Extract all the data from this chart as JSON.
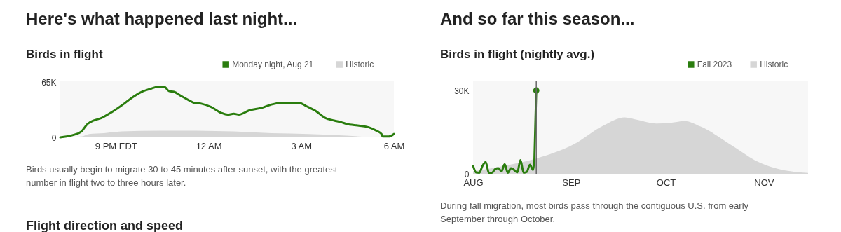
{
  "chart_data": [
    {
      "type": "line",
      "title": "Here's what happened last night...",
      "subtitle": "Birds in flight",
      "xlim": [
        "2023-08-21T19:12",
        "2023-08-22T06:00"
      ],
      "xticks": [
        {
          "value": "2023-08-21T21:00",
          "label": "9 PM EDT"
        },
        {
          "value": "2023-08-22T00:00",
          "label": "12 AM"
        },
        {
          "value": "2023-08-22T03:00",
          "label": "3 AM"
        },
        {
          "value": "2023-08-22T06:00",
          "label": "6 AM"
        }
      ],
      "ylim": [
        0,
        66500
      ],
      "yticks": [
        0,
        {
          "value": 65000,
          "label": "65K"
        }
      ],
      "legend": "top right",
      "series": [
        {
          "name": "Monday night, Aug 21",
          "color": "#2a7d0e",
          "x": [
            "2023-08-21T19:12",
            "2023-08-21T19:24",
            "2023-08-21T19:38",
            "2023-08-21T19:53",
            "2023-08-21T20:05",
            "2023-08-21T20:17",
            "2023-08-21T20:32",
            "2023-08-21T20:52",
            "2023-08-21T21:16",
            "2023-08-21T21:31",
            "2023-08-21T21:50",
            "2023-08-21T22:09",
            "2023-08-21T22:22",
            "2023-08-21T22:34",
            "2023-08-21T22:43",
            "2023-08-21T22:53",
            "2023-08-21T23:07",
            "2023-08-21T23:22",
            "2023-08-21T23:32",
            "2023-08-21T23:46",
            "2023-08-22T00:05",
            "2023-08-22T00:25",
            "2023-08-22T00:37",
            "2023-08-22T00:49",
            "2023-08-22T00:59",
            "2023-08-22T01:19",
            "2023-08-22T01:43",
            "2023-08-22T02:02",
            "2023-08-22T02:22",
            "2023-08-22T02:41",
            "2023-08-22T02:56",
            "2023-08-22T03:10",
            "2023-08-22T03:29",
            "2023-08-22T03:47",
            "2023-08-22T04:04",
            "2023-08-22T04:18",
            "2023-08-22T04:28",
            "2023-08-22T04:52",
            "2023-08-22T05:11",
            "2023-08-22T05:26",
            "2023-08-22T05:36",
            "2023-08-22T05:38",
            "2023-08-22T05:50",
            "2023-08-22T06:00"
          ],
          "values": [
            0,
            1000,
            3000,
            7000,
            16000,
            20000,
            23000,
            30000,
            40000,
            47000,
            54000,
            58000,
            60000,
            60000,
            55000,
            54000,
            49000,
            44000,
            41000,
            40000,
            36000,
            29000,
            27000,
            28000,
            27000,
            32000,
            35000,
            39000,
            41000,
            41000,
            41000,
            37000,
            31000,
            23000,
            20000,
            18000,
            16000,
            14000,
            12000,
            8000,
            4000,
            1000,
            1000,
            4000
          ]
        },
        {
          "name": "Historic",
          "type": "area",
          "color": "#d6d6d6",
          "x": [
            "2023-08-21T19:12",
            "2023-08-21T19:53",
            "2023-08-21T20:08",
            "2023-08-21T20:37",
            "2023-08-21T21:11",
            "2023-08-21T22:24",
            "2023-08-21T23:37",
            "2023-08-22T00:49",
            "2023-08-22T02:02",
            "2023-08-22T03:15",
            "2023-08-22T04:28",
            "2023-08-22T05:31",
            "2023-08-22T06:00"
          ],
          "values": [
            0,
            1000,
            4000,
            5000,
            7000,
            8000,
            8000,
            7000,
            5000,
            4000,
            2000,
            0,
            0
          ]
        }
      ],
      "annotations": [
        "Birds usually begin to migrate 30 to 45 minutes after sunset, with the greatest number in flight two to three hours later.",
        "Flight direction and speed"
      ]
    },
    {
      "type": "line",
      "title": "And so far this season...",
      "subtitle": "Birds in flight (nightly avg.)",
      "xlim": [
        "2023-08-01",
        "2023-11-15"
      ],
      "xticks": [
        {
          "value": "2023-08-01",
          "label": "AUG"
        },
        {
          "value": "2023-09-01",
          "label": "SEP"
        },
        {
          "value": "2023-10-01",
          "label": "OCT"
        },
        {
          "value": "2023-11-01",
          "label": "NOV"
        }
      ],
      "ylim": [
        0,
        33300
      ],
      "yticks": [
        0,
        {
          "value": 30000,
          "label": "30K"
        }
      ],
      "legend": "top right",
      "series": [
        {
          "name": "Fall 2023",
          "color": "#2a7d0e",
          "x": [
            "2023-08-01",
            "2023-08-02",
            "2023-08-03",
            "2023-08-04",
            "2023-08-05",
            "2023-08-06",
            "2023-08-07",
            "2023-08-08",
            "2023-08-09",
            "2023-08-10",
            "2023-08-11",
            "2023-08-12",
            "2023-08-13",
            "2023-08-14",
            "2023-08-15",
            "2023-08-16",
            "2023-08-17",
            "2023-08-18",
            "2023-08-19",
            "2023-08-20",
            "2023-08-21"
          ],
          "values": [
            2900,
            500,
            400,
            2900,
            4200,
            400,
            400,
            1700,
            2000,
            900,
            3500,
            400,
            2000,
            1400,
            500,
            4900,
            400,
            700,
            3300,
            1400,
            30000
          ]
        },
        {
          "name": "Historic",
          "type": "area",
          "color": "#d6d6d6",
          "x": [
            "2023-08-01",
            "2023-08-11",
            "2023-08-21",
            "2023-09-02",
            "2023-09-11",
            "2023-09-18",
            "2023-09-22",
            "2023-09-28",
            "2023-10-02",
            "2023-10-07",
            "2023-10-12",
            "2023-10-23",
            "2023-10-29",
            "2023-11-03",
            "2023-11-15"
          ],
          "values": [
            900,
            2900,
            5500,
            10700,
            17200,
            20300,
            19400,
            18100,
            18300,
            19000,
            17000,
            9400,
            5000,
            2600,
            300
          ]
        },
        {
          "type": "scatter",
          "color": "#2a7d0e",
          "x": [
            "2023-08-21"
          ],
          "values": [
            30000
          ]
        }
      ],
      "ref_lines": [
        {
          "axis": "x",
          "value": "2023-08-21",
          "color": "#666666"
        }
      ],
      "annotations": [
        "During fall migration, most birds pass through the contiguous U.S. from early September through October."
      ]
    }
  ]
}
